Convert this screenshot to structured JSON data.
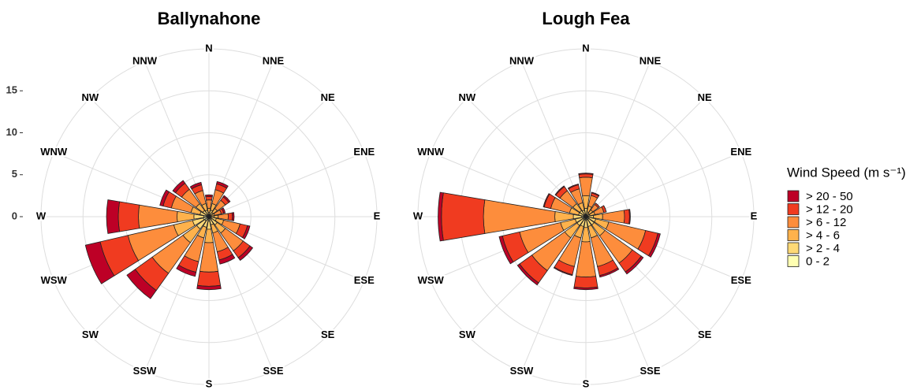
{
  "chart_data": [
    {
      "type": "windrose",
      "title": "Ballynahone",
      "categories": [
        "N",
        "NNE",
        "NE",
        "ENE",
        "E",
        "ESE",
        "SE",
        "SSE",
        "S",
        "SSW",
        "SW",
        "WSW",
        "W",
        "WNW",
        "NW",
        "NNW"
      ],
      "ylim": [
        0,
        20
      ],
      "yticks": [
        0,
        5,
        10,
        15
      ],
      "tick_labels": true,
      "grid": true,
      "legend_title": "Wind Speed (m s⁻¹)",
      "series": [
        {
          "name": "0 - 2",
          "color": "#ffffb2",
          "values": [
            0.2,
            0.3,
            0.2,
            0.1,
            0.2,
            0.3,
            0.4,
            0.3,
            0.5,
            0.4,
            0.6,
            0.7,
            0.6,
            0.4,
            0.3,
            0.3
          ]
        },
        {
          "name": "> 2 - 4",
          "color": "#fed976",
          "values": [
            0.3,
            0.5,
            0.4,
            0.2,
            0.4,
            0.6,
            0.8,
            0.7,
            1.0,
            0.9,
            1.2,
            1.3,
            1.2,
            0.7,
            0.6,
            0.5
          ]
        },
        {
          "name": "> 4 - 6",
          "color": "#feb24c",
          "values": [
            0.5,
            0.8,
            0.6,
            0.4,
            0.5,
            0.9,
            1.2,
            1.0,
            1.6,
            1.3,
            2.0,
            2.3,
            2.0,
            1.1,
            1.0,
            0.8
          ]
        },
        {
          "name": "> 6 - 12",
          "color": "#fd8d3c",
          "values": [
            1.0,
            1.7,
            1.2,
            0.8,
            1.2,
            2.0,
            2.6,
            2.3,
            3.5,
            2.9,
            4.5,
            5.6,
            4.6,
            2.4,
            2.1,
            1.6
          ]
        },
        {
          "name": "> 12 - 20",
          "color": "#f03b20",
          "values": [
            0.4,
            0.7,
            0.5,
            0.3,
            0.5,
            0.9,
            1.0,
            1.0,
            1.7,
            1.3,
            2.5,
            3.4,
            2.4,
            1.0,
            0.9,
            0.7
          ]
        },
        {
          "name": "> 20 - 50",
          "color": "#bd0026",
          "values": [
            0.2,
            0.3,
            0.2,
            0.2,
            0.2,
            0.3,
            0.4,
            0.5,
            0.4,
            0.5,
            1.2,
            1.8,
            1.4,
            0.4,
            0.4,
            0.3
          ]
        }
      ]
    },
    {
      "type": "windrose",
      "title": "Lough Fea",
      "categories": [
        "N",
        "NNE",
        "NE",
        "ENE",
        "E",
        "ESE",
        "SE",
        "SSE",
        "S",
        "SSW",
        "SW",
        "WSW",
        "W",
        "WNW",
        "NW",
        "NNW"
      ],
      "ylim": [
        0,
        20
      ],
      "yticks": [
        0,
        5,
        10,
        15
      ],
      "tick_labels": false,
      "grid": true,
      "series": [
        {
          "color": "#ffffb2",
          "values": [
            0.3,
            0.2,
            0.2,
            0.2,
            0.3,
            0.4,
            0.4,
            0.4,
            0.4,
            0.4,
            0.4,
            0.4,
            0.5,
            0.3,
            0.3,
            0.3
          ]
        },
        {
          "color": "#fed976",
          "values": [
            0.7,
            0.4,
            0.3,
            0.3,
            0.6,
            0.8,
            0.8,
            0.8,
            0.9,
            0.8,
            0.9,
            0.9,
            1.0,
            0.6,
            0.6,
            0.5
          ]
        },
        {
          "color": "#feb24c",
          "values": [
            1.5,
            0.7,
            0.5,
            0.6,
            1.1,
            1.6,
            1.6,
            1.4,
            1.7,
            1.4,
            1.8,
            1.8,
            2.2,
            1.1,
            1.0,
            0.9
          ]
        },
        {
          "color": "#fd8d3c",
          "values": [
            2.2,
            1.3,
            0.8,
            1.1,
            2.6,
            4.5,
            4.0,
            3.5,
            4.2,
            3.5,
            4.8,
            5.0,
            8.5,
            2.3,
            1.9,
            1.7
          ]
        },
        {
          "color": "#f03b20",
          "values": [
            0.4,
            0.3,
            0.2,
            0.3,
            0.6,
            1.5,
            1.3,
            1.1,
            1.3,
            1.0,
            1.8,
            2.1,
            5.0,
            0.8,
            0.6,
            0.5
          ]
        },
        {
          "color": "#bd0026",
          "values": [
            0.1,
            0.1,
            0,
            0,
            0.1,
            0.3,
            0.3,
            0.2,
            0.2,
            0.1,
            0.3,
            0.4,
            0.4,
            0.1,
            0.1,
            0.1
          ]
        }
      ]
    }
  ]
}
